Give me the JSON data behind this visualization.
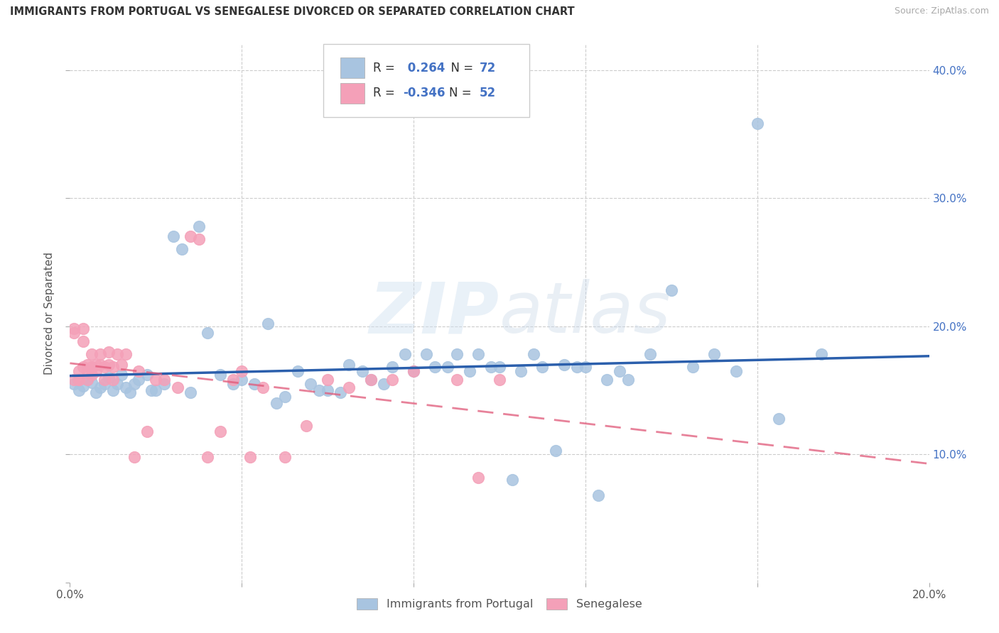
{
  "title": "IMMIGRANTS FROM PORTUGAL VS SENEGALESE DIVORCED OR SEPARATED CORRELATION CHART",
  "source": "Source: ZipAtlas.com",
  "ylabel": "Divorced or Separated",
  "xlim": [
    0.0,
    0.2
  ],
  "ylim": [
    0.0,
    0.42
  ],
  "legend_labels": [
    "Immigrants from Portugal",
    "Senegalese"
  ],
  "blue_color": "#a8c4e0",
  "pink_color": "#f4a0b8",
  "blue_line_color": "#2b5fac",
  "pink_line_color": "#e05878",
  "R_blue": 0.264,
  "N_blue": 72,
  "R_pink": -0.346,
  "N_pink": 52,
  "blue_points_x": [
    0.001,
    0.002,
    0.003,
    0.004,
    0.005,
    0.006,
    0.007,
    0.008,
    0.009,
    0.01,
    0.011,
    0.012,
    0.013,
    0.014,
    0.015,
    0.016,
    0.018,
    0.019,
    0.02,
    0.022,
    0.024,
    0.026,
    0.028,
    0.03,
    0.032,
    0.035,
    0.038,
    0.04,
    0.043,
    0.046,
    0.048,
    0.05,
    0.053,
    0.056,
    0.058,
    0.06,
    0.063,
    0.065,
    0.068,
    0.07,
    0.073,
    0.075,
    0.078,
    0.08,
    0.083,
    0.085,
    0.088,
    0.09,
    0.093,
    0.095,
    0.098,
    0.1,
    0.103,
    0.105,
    0.108,
    0.11,
    0.113,
    0.115,
    0.118,
    0.12,
    0.123,
    0.125,
    0.128,
    0.13,
    0.135,
    0.14,
    0.145,
    0.15,
    0.155,
    0.16,
    0.165,
    0.175
  ],
  "blue_points_y": [
    0.155,
    0.15,
    0.153,
    0.158,
    0.156,
    0.148,
    0.152,
    0.155,
    0.16,
    0.15,
    0.155,
    0.162,
    0.152,
    0.148,
    0.155,
    0.158,
    0.162,
    0.15,
    0.15,
    0.155,
    0.27,
    0.26,
    0.148,
    0.278,
    0.195,
    0.162,
    0.155,
    0.158,
    0.155,
    0.202,
    0.14,
    0.145,
    0.165,
    0.155,
    0.15,
    0.15,
    0.148,
    0.17,
    0.165,
    0.158,
    0.155,
    0.168,
    0.178,
    0.165,
    0.178,
    0.168,
    0.168,
    0.178,
    0.165,
    0.178,
    0.168,
    0.168,
    0.08,
    0.165,
    0.178,
    0.168,
    0.103,
    0.17,
    0.168,
    0.168,
    0.068,
    0.158,
    0.165,
    0.158,
    0.178,
    0.228,
    0.168,
    0.178,
    0.165,
    0.358,
    0.128,
    0.178
  ],
  "pink_points_x": [
    0.001,
    0.001,
    0.001,
    0.002,
    0.002,
    0.002,
    0.003,
    0.003,
    0.003,
    0.004,
    0.004,
    0.004,
    0.005,
    0.005,
    0.005,
    0.006,
    0.006,
    0.007,
    0.007,
    0.008,
    0.008,
    0.009,
    0.009,
    0.01,
    0.01,
    0.011,
    0.012,
    0.013,
    0.015,
    0.016,
    0.018,
    0.02,
    0.022,
    0.025,
    0.028,
    0.03,
    0.032,
    0.035,
    0.038,
    0.04,
    0.042,
    0.045,
    0.05,
    0.055,
    0.06,
    0.065,
    0.07,
    0.075,
    0.08,
    0.09,
    0.095,
    0.1
  ],
  "pink_points_y": [
    0.158,
    0.198,
    0.195,
    0.158,
    0.165,
    0.158,
    0.168,
    0.188,
    0.198,
    0.165,
    0.158,
    0.17,
    0.162,
    0.168,
    0.178,
    0.17,
    0.165,
    0.17,
    0.178,
    0.158,
    0.168,
    0.18,
    0.17,
    0.158,
    0.168,
    0.178,
    0.17,
    0.178,
    0.098,
    0.165,
    0.118,
    0.158,
    0.158,
    0.152,
    0.27,
    0.268,
    0.098,
    0.118,
    0.158,
    0.165,
    0.098,
    0.152,
    0.098,
    0.122,
    0.158,
    0.152,
    0.158,
    0.158,
    0.165,
    0.158,
    0.082,
    0.158
  ]
}
